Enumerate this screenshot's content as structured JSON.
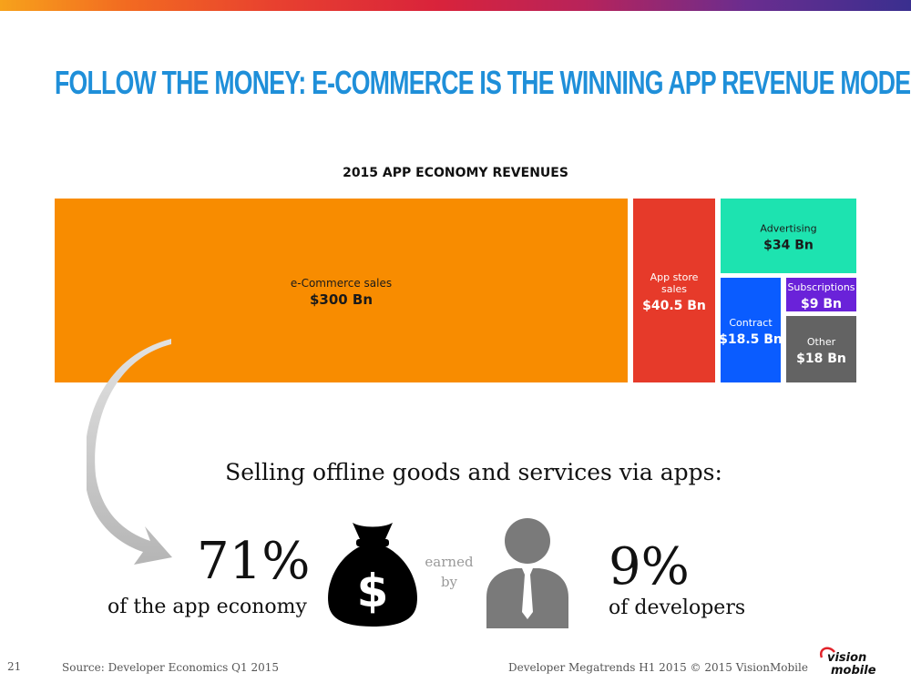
{
  "slide": {
    "title": "FOLLOW THE MONEY: E-COMMERCE IS THE WINNING APP REVENUE MODEL",
    "heading": "Selling offline goods and services via apps:",
    "stat_left": {
      "value": "71%",
      "label": "of the app economy"
    },
    "earned_by": [
      "earned",
      "by"
    ],
    "stat_right": {
      "value": "9%",
      "label": "of developers"
    },
    "icons": [
      "money-bag-icon",
      "developer-person-icon",
      "curved-arrow-icon"
    ]
  },
  "footer": {
    "page_number": "21",
    "source": "Source: Developer Economics Q1 2015",
    "credit": "Developer Megatrends H1 2015 © 2015 VisionMobile",
    "logo_text": [
      "vision",
      "mobile"
    ]
  },
  "chart_data": {
    "type": "treemap",
    "title": "2015 APP ECONOMY REVENUES",
    "unit": "Bn",
    "items": [
      {
        "name": "e-Commerce sales",
        "label_lines": [
          "e-Commerce sales"
        ],
        "value": 300,
        "value_label": "$300 Bn",
        "color": "#f88c00"
      },
      {
        "name": "App store sales",
        "label_lines": [
          "App store",
          "sales"
        ],
        "value": 40.5,
        "value_label": "$40.5 Bn",
        "color": "#e63a2a"
      },
      {
        "name": "Advertising",
        "label_lines": [
          "Advertising"
        ],
        "value": 34,
        "value_label": "$34 Bn",
        "color": "#1de3b0"
      },
      {
        "name": "Subscriptions",
        "label_lines": [
          "Subscriptions"
        ],
        "value": 9,
        "value_label": "$9 Bn",
        "color": "#6a22d9"
      },
      {
        "name": "Contract",
        "label_lines": [
          "Contract"
        ],
        "value": 18.5,
        "value_label": "$18.5 Bn",
        "color": "#0a5cff"
      },
      {
        "name": "Other",
        "label_lines": [
          "Other"
        ],
        "value": 18,
        "value_label": "$18 Bn",
        "color": "#636363"
      }
    ]
  }
}
